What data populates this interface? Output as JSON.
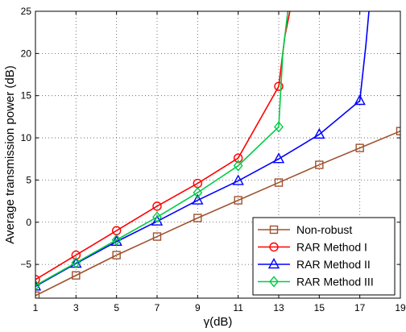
{
  "chart_data": {
    "type": "line",
    "title": "",
    "xlabel": "γ(dB)",
    "ylabel": "Average transmission power (dB)",
    "xlim": [
      1,
      19
    ],
    "ylim": [
      -9,
      25
    ],
    "xticks": [
      1,
      3,
      5,
      7,
      9,
      11,
      13,
      15,
      17,
      19
    ],
    "yticks": [
      -5,
      0,
      5,
      10,
      15,
      20,
      25
    ],
    "grid": true,
    "legend_position": "bottom-right",
    "series": [
      {
        "name": "Non-robust",
        "color": "#a0522d",
        "marker": "square",
        "x": [
          1,
          3,
          5,
          7,
          9,
          11,
          13,
          15,
          17,
          19
        ],
        "y": [
          -8.7,
          -6.3,
          -3.9,
          -1.7,
          0.5,
          2.6,
          4.7,
          6.8,
          8.8,
          10.8
        ],
        "tail": []
      },
      {
        "name": "RAR Method I",
        "color": "#ff0000",
        "marker": "circle",
        "x": [
          1,
          3,
          5,
          7,
          9,
          11,
          13
        ],
        "y": [
          -6.8,
          -3.9,
          -1.0,
          1.9,
          4.6,
          7.6,
          16.1
        ],
        "tail": [
          [
            13.3,
            22.0
          ],
          [
            13.55,
            25
          ]
        ]
      },
      {
        "name": "RAR Method II",
        "color": "#0000ff",
        "marker": "triangle",
        "x": [
          1,
          3,
          5,
          7,
          9,
          11,
          13,
          15,
          17
        ],
        "y": [
          -7.6,
          -4.9,
          -2.3,
          0.1,
          2.6,
          4.9,
          7.5,
          10.4,
          14.4
        ],
        "tail": [
          [
            17.3,
            21.0
          ],
          [
            17.45,
            25
          ]
        ]
      },
      {
        "name": "RAR Method III",
        "color": "#00cc44",
        "marker": "diamond",
        "x": [
          1,
          3,
          5,
          7,
          9,
          11,
          13
        ],
        "y": [
          -7.5,
          -4.8,
          -2.1,
          0.6,
          3.5,
          6.7,
          11.3
        ],
        "tail": [
          [
            13.2,
            20.0
          ],
          [
            13.45,
            25
          ]
        ]
      }
    ]
  }
}
